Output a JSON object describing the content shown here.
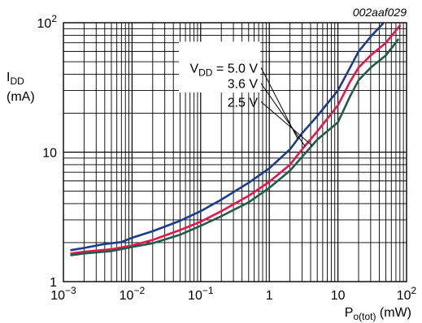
{
  "figure_id": "002aaf029",
  "chart_data": {
    "type": "line",
    "x_scale": "log",
    "y_scale": "log",
    "xlim": [
      0.001,
      100
    ],
    "ylim": [
      1,
      100
    ],
    "ylabel": {
      "main": "I",
      "sub": "DD",
      "unit": "(mA)"
    },
    "xlabel": {
      "main": "P",
      "sub": "o(tot)",
      "unit": " (mW)"
    },
    "x_ticks": [
      {
        "value": 0.001,
        "base": "10",
        "exp": "−3"
      },
      {
        "value": 0.01,
        "base": "10",
        "exp": "−2"
      },
      {
        "value": 0.1,
        "base": "10",
        "exp": "−1"
      },
      {
        "value": 1,
        "base": "1",
        "exp": ""
      },
      {
        "value": 10,
        "base": "10",
        "exp": ""
      },
      {
        "value": 100,
        "base": "10",
        "exp": "2"
      }
    ],
    "y_ticks": [
      {
        "value": 1,
        "base": "1",
        "exp": ""
      },
      {
        "value": 10,
        "base": "10",
        "exp": ""
      },
      {
        "value": 100,
        "base": "10",
        "exp": "2"
      }
    ],
    "grid": true,
    "series": [
      {
        "name_prefix": "V",
        "name_sub": "DD",
        "name_suffix": " = 5.0 V",
        "color": "#1a3c8c",
        "points": [
          [
            0.0013,
            1.75
          ],
          [
            0.002,
            1.82
          ],
          [
            0.004,
            1.95
          ],
          [
            0.007,
            2.02
          ],
          [
            0.01,
            2.18
          ],
          [
            0.02,
            2.45
          ],
          [
            0.05,
            2.95
          ],
          [
            0.1,
            3.5
          ],
          [
            0.2,
            4.3
          ],
          [
            0.5,
            5.8
          ],
          [
            1,
            7.5
          ],
          [
            2,
            10.5
          ],
          [
            3,
            14
          ],
          [
            5,
            19
          ],
          [
            10,
            30
          ],
          [
            15,
            45
          ],
          [
            20,
            60
          ],
          [
            30,
            78
          ],
          [
            45,
            98
          ]
        ]
      },
      {
        "name_prefix": "",
        "name_sub": "",
        "name_suffix": "3.6 V",
        "color": "#e8144b",
        "points": [
          [
            0.0013,
            1.65
          ],
          [
            0.002,
            1.7
          ],
          [
            0.005,
            1.78
          ],
          [
            0.01,
            1.9
          ],
          [
            0.02,
            2.1
          ],
          [
            0.05,
            2.5
          ],
          [
            0.1,
            2.9
          ],
          [
            0.2,
            3.5
          ],
          [
            0.5,
            4.6
          ],
          [
            1,
            5.9
          ],
          [
            2,
            8.0
          ],
          [
            3,
            10.5
          ],
          [
            5,
            14.5
          ],
          [
            10,
            23
          ],
          [
            15,
            35
          ],
          [
            20,
            45
          ],
          [
            30,
            56
          ],
          [
            50,
            70
          ],
          [
            80,
            95
          ]
        ]
      },
      {
        "name_prefix": "",
        "name_sub": "",
        "name_suffix": "2.5 V",
        "color": "#1f5c4a",
        "points": [
          [
            0.0013,
            1.6
          ],
          [
            0.002,
            1.65
          ],
          [
            0.005,
            1.72
          ],
          [
            0.01,
            1.85
          ],
          [
            0.02,
            1.98
          ],
          [
            0.05,
            2.3
          ],
          [
            0.1,
            2.7
          ],
          [
            0.2,
            3.2
          ],
          [
            0.5,
            4.1
          ],
          [
            1,
            5.3
          ],
          [
            2,
            7.2
          ],
          [
            3,
            9.2
          ],
          [
            5,
            12.5
          ],
          [
            10,
            17
          ],
          [
            15,
            27
          ],
          [
            20,
            36
          ],
          [
            30,
            45
          ],
          [
            50,
            56
          ],
          [
            75,
            74
          ]
        ]
      }
    ],
    "legend_placement": "center"
  }
}
